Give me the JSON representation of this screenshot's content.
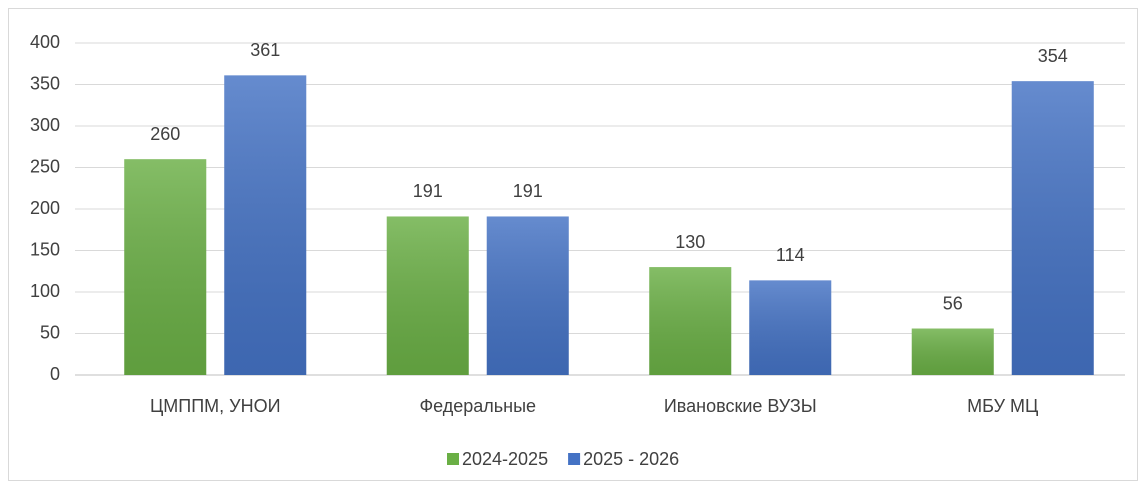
{
  "chart_data": {
    "type": "bar",
    "categories": [
      "ЦМППМ, УНОИ",
      "Федеральные",
      "Ивановские ВУЗЫ",
      "МБУ МЦ"
    ],
    "series": [
      {
        "name": "2024-2025",
        "color": "#6aaf45",
        "values": [
          260,
          191,
          130,
          56
        ]
      },
      {
        "name": "2025 - 2026",
        "color": "#4472c4",
        "values": [
          361,
          191,
          114,
          354
        ]
      }
    ],
    "ylim": [
      0,
      400
    ],
    "yticks": [
      0,
      50,
      100,
      150,
      200,
      250,
      300,
      350,
      400
    ],
    "grid": true,
    "legend": "bottom"
  }
}
